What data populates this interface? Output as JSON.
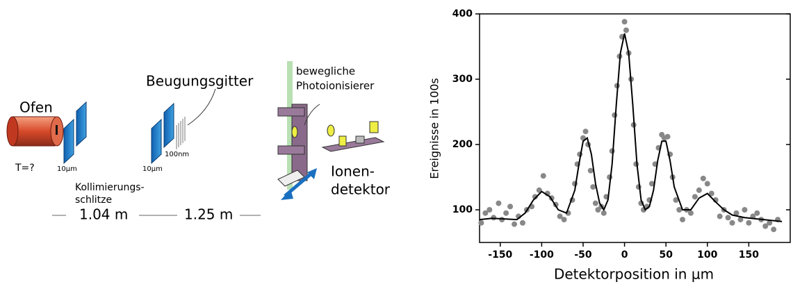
{
  "diagram": {
    "oven": "Ofen",
    "temperature": "T=?",
    "slit1": "10µm",
    "slit2": "10µm",
    "grating": "Beugungsgitter",
    "grating_period": "100nm",
    "ionizer_line1": "bewegliche",
    "ionizer_line2": "Photoionisierer",
    "detector_line1": "Ionen-",
    "detector_line2": "detektor",
    "collimation_line1": "Kollimierungs-",
    "collimation_line2": "schlitze",
    "distance1": "1.04 m",
    "distance2": "1.25 m"
  },
  "chart_data": {
    "type": "scatter",
    "x_label": "Detektorposition in µm",
    "y_label": "Ereignisse in 100s",
    "xlim": [
      -175,
      200
    ],
    "ylim": [
      50,
      400
    ],
    "xticks": [
      -150,
      -100,
      -50,
      0,
      50,
      100,
      150
    ],
    "yticks": [
      100,
      200,
      300,
      400
    ],
    "series": [
      {
        "mode": "markers",
        "color": "#888888",
        "x": [
          -173,
          -168,
          -163,
          -158,
          -152,
          -148,
          -143,
          -138,
          -133,
          -128,
          -123,
          -118,
          -112,
          -108,
          -103,
          -98,
          -93,
          -88,
          -83,
          -78,
          -73,
          -68,
          -63,
          -60,
          -57,
          -54,
          -50,
          -47,
          -44,
          -41,
          -38,
          -35,
          -32,
          -28,
          -25,
          -22,
          -18,
          -15,
          -12,
          -9,
          -6,
          -3,
          0,
          2,
          5,
          8,
          11,
          14,
          17,
          20,
          23,
          27,
          30,
          33,
          37,
          41,
          45,
          48,
          52,
          55,
          58,
          62,
          66,
          70,
          75,
          80,
          85,
          90,
          95,
          100,
          105,
          110,
          115,
          120,
          125,
          130,
          135,
          140,
          145,
          150,
          155,
          160,
          165,
          170,
          175,
          180,
          185
        ],
        "values": [
          80,
          95,
          100,
          88,
          110,
          85,
          95,
          105,
          78,
          90,
          80,
          100,
          105,
          120,
          130,
          152,
          125,
          118,
          108,
          90,
          85,
          95,
          115,
          140,
          170,
          185,
          210,
          220,
          200,
          160,
          135,
          110,
          100,
          105,
          95,
          120,
          150,
          190,
          245,
          290,
          335,
          365,
          388,
          375,
          340,
          300,
          230,
          170,
          135,
          110,
          100,
          105,
          115,
          140,
          170,
          195,
          215,
          210,
          212,
          185,
          150,
          115,
          100,
          85,
          100,
          95,
          120,
          130,
          148,
          140,
          125,
          115,
          90,
          100,
          88,
          80,
          95,
          85,
          100,
          80,
          90,
          95,
          85,
          75,
          80,
          70,
          85
        ]
      },
      {
        "mode": "line",
        "color": "#000000",
        "x": [
          -175,
          -160,
          -145,
          -130,
          -120,
          -110,
          -100,
          -90,
          -80,
          -70,
          -60,
          -55,
          -50,
          -45,
          -40,
          -35,
          -30,
          -25,
          -20,
          -15,
          -10,
          -5,
          0,
          5,
          10,
          15,
          20,
          25,
          30,
          35,
          40,
          45,
          50,
          55,
          60,
          70,
          80,
          90,
          100,
          110,
          120,
          130,
          145,
          160,
          175,
          190
        ],
        "values": [
          85,
          87,
          86,
          85,
          95,
          115,
          128,
          120,
          100,
          95,
          130,
          170,
          205,
          210,
          185,
          140,
          110,
          100,
          115,
          170,
          260,
          340,
          370,
          340,
          260,
          170,
          115,
          100,
          105,
          130,
          175,
          205,
          205,
          175,
          135,
          100,
          100,
          118,
          125,
          112,
          100,
          92,
          88,
          86,
          84,
          82
        ]
      }
    ]
  }
}
